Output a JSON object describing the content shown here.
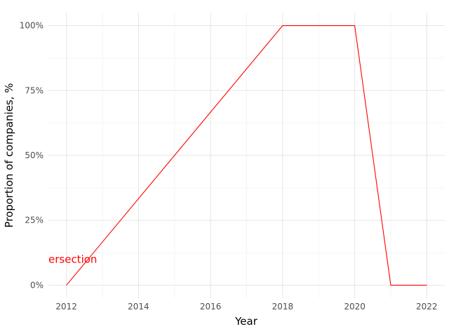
{
  "chart_data": {
    "type": "line",
    "title": "",
    "xlabel": "Year",
    "ylabel": "Proportion of companies, %",
    "x_ticks": [
      "2012",
      "2014",
      "2016",
      "2018",
      "2020",
      "2022"
    ],
    "y_ticks": [
      "0%",
      "25%",
      "50%",
      "75%",
      "100%"
    ],
    "xlim": [
      2011.5,
      2022.5
    ],
    "ylim": [
      -5,
      105
    ],
    "grid": true,
    "series": [
      {
        "color": "#ff0000",
        "x": [
          2012,
          2018,
          2020,
          2021,
          2022
        ],
        "values": [
          0,
          100,
          100,
          0,
          0
        ]
      }
    ],
    "annotations": [
      {
        "text": "ersection",
        "x": 2011.5,
        "y": 10,
        "color": "#ff0000"
      }
    ]
  }
}
